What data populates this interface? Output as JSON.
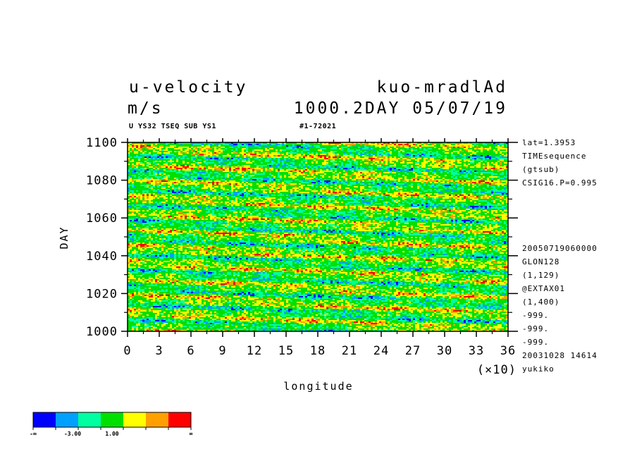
{
  "chart_data": {
    "type": "heatmap",
    "title_left": [
      "u-velocity",
      "m/s"
    ],
    "title_right": [
      "kuo-mradlAd",
      "1000.2DAY 05/07/19"
    ],
    "subtitle_left": "U YS32 TSEQ SUB YS1",
    "subtitle_right": "#1-72021",
    "xlabel": "longitude",
    "ylabel": "DAY",
    "x_multiplier": "(×10)",
    "xlim": [
      0,
      36
    ],
    "ylim": [
      1000,
      1100
    ],
    "x_ticks": [
      "0",
      "3",
      "6",
      "9",
      "12",
      "15",
      "18",
      "21",
      "24",
      "27",
      "30",
      "33",
      "36"
    ],
    "y_ticks": [
      "1000",
      "1020",
      "1040",
      "1060",
      "1080",
      "1100"
    ],
    "side_info_top": [
      "lat=1.3953",
      "TIMEsequence",
      "(gtsub)",
      "CSIG16.P=0.995"
    ],
    "side_info_bottom": [
      "20050719060000",
      "GLON128",
      "(1,129)",
      "@EXTAX01",
      "(1,400)",
      "-999.",
      "-999.",
      "-999.",
      "20031028  14614",
      "yukiko"
    ],
    "colorbar": {
      "colors": [
        "#0000ff",
        "#00a0ff",
        "#00ffa0",
        "#00e000",
        "#ffff00",
        "#ffa000",
        "#ff0000"
      ],
      "labels": [
        "-∞",
        "-3.00",
        "1.00",
        "∞"
      ]
    }
  }
}
